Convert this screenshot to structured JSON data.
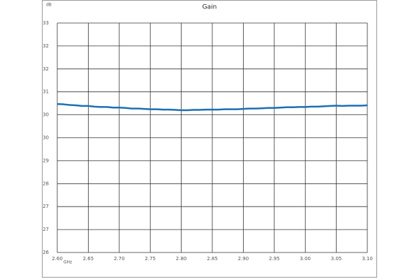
{
  "chart_data": {
    "type": "line",
    "title": "Gain",
    "y_label": "dB",
    "x_label": "GHz",
    "x": [
      2.6,
      2.61,
      2.62,
      2.63,
      2.64,
      2.65,
      2.66,
      2.67,
      2.68,
      2.69,
      2.7,
      2.71,
      2.72,
      2.73,
      2.74,
      2.75,
      2.76,
      2.77,
      2.78,
      2.79,
      2.8,
      2.81,
      2.82,
      2.83,
      2.84,
      2.85,
      2.86,
      2.87,
      2.88,
      2.89,
      2.9,
      2.91,
      2.92,
      2.93,
      2.94,
      2.95,
      2.96,
      2.97,
      2.98,
      2.99,
      3.0,
      3.01,
      3.02,
      3.03,
      3.04,
      3.05,
      3.06,
      3.07,
      3.08,
      3.09,
      3.1
    ],
    "series": [
      {
        "name": "Gain",
        "color": "#1a6fb5",
        "values": [
          30.53,
          30.52,
          30.5,
          30.49,
          30.47,
          30.47,
          30.45,
          30.44,
          30.44,
          30.42,
          30.42,
          30.41,
          30.39,
          30.39,
          30.38,
          30.37,
          30.37,
          30.36,
          30.36,
          30.35,
          30.34,
          30.34,
          30.35,
          30.35,
          30.36,
          30.36,
          30.36,
          30.37,
          30.37,
          30.37,
          30.38,
          30.39,
          30.39,
          30.4,
          30.41,
          30.41,
          30.42,
          30.43,
          30.43,
          30.44,
          30.44,
          30.45,
          30.45,
          30.46,
          30.47,
          30.48,
          30.47,
          30.48,
          30.48,
          30.48,
          30.49
        ]
      }
    ],
    "xlim": [
      2.6,
      3.1
    ],
    "xticks": [
      {
        "value": 2.6,
        "label": "2.60"
      },
      2.65,
      {
        "value": 2.7,
        "label": "2.70"
      },
      2.75,
      {
        "value": 2.8,
        "label": "2.80"
      },
      2.85,
      {
        "value": 2.9,
        "label": "2.90"
      },
      2.95,
      {
        "value": 3.0,
        "label": "3.00"
      },
      3.05,
      {
        "value": 3.1,
        "label": "3.10"
      }
    ],
    "ylim": [
      26,
      33
    ],
    "yticks": [
      26,
      {
        "value": 26.7,
        "label": "27"
      },
      {
        "value": 27.4,
        "label": "27"
      },
      {
        "value": 28.1,
        "label": "28"
      },
      {
        "value": 28.8,
        "label": "29"
      },
      {
        "value": 29.5,
        "label": "30"
      },
      {
        "value": 30.2,
        "label": "30"
      },
      {
        "value": 30.9,
        "label": "31"
      },
      {
        "value": 31.6,
        "label": "32"
      },
      {
        "value": 32.3,
        "label": "32"
      },
      33
    ],
    "grid": true
  }
}
